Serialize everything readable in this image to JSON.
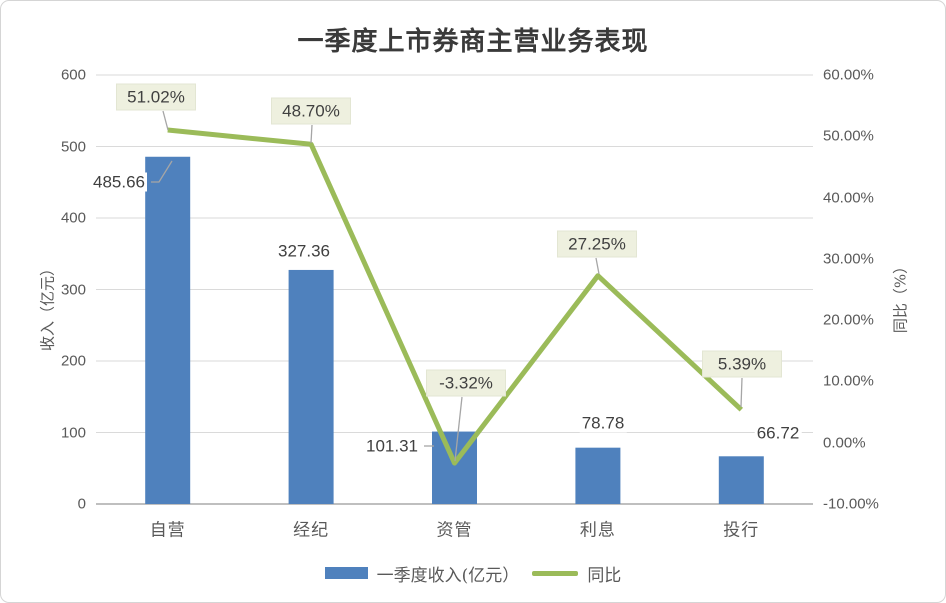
{
  "title": "一季度上市券商主营业务表现",
  "chart_data": {
    "type": "bar+line combo",
    "categories": [
      "自营",
      "经纪",
      "资管",
      "利息",
      "投行"
    ],
    "series": [
      {
        "name": "一季度收入(亿元）",
        "type": "bar",
        "axis": "left",
        "color": "#4F81BD",
        "values": [
          485.66,
          327.36,
          101.31,
          78.78,
          66.72
        ],
        "labels": [
          "485.66",
          "327.36",
          "101.31",
          "78.78",
          "66.72"
        ]
      },
      {
        "name": "同比",
        "type": "line",
        "axis": "right",
        "color": "#9BBB59",
        "values": [
          51.02,
          48.7,
          -3.32,
          27.25,
          5.39
        ],
        "labels": [
          "51.02%",
          "48.70%",
          "-3.32%",
          "27.25%",
          "5.39%"
        ]
      }
    ],
    "left_axis": {
      "title": "收入（亿元）",
      "min": 0,
      "max": 600,
      "step": 100,
      "ticks": [
        "600",
        "500",
        "400",
        "300",
        "200",
        "100",
        "0"
      ]
    },
    "right_axis": {
      "title": "同比（%）",
      "min": -10,
      "max": 60,
      "step": 10,
      "ticks": [
        "60.00%",
        "50.00%",
        "40.00%",
        "30.00%",
        "20.00%",
        "10.00%",
        "0.00%",
        "-10.00%"
      ]
    },
    "grid": "horizontal gridlines on, left-axis intervals",
    "legend_position": "bottom"
  },
  "legend": {
    "items": [
      {
        "label": "一季度收入(亿元）",
        "type": "bar",
        "color": "#4F81BD"
      },
      {
        "label": "同比",
        "type": "line",
        "color": "#9BBB59"
      }
    ]
  },
  "colors": {
    "bar": "#4F81BD",
    "line": "#9BBB59",
    "callout_fill": "#EEF0DF",
    "callout_border": "#E3E6D3",
    "leader": "#A6A6A6",
    "gridline": "#DADADA",
    "axis_line": "#BFBFBF",
    "tick_text": "#595959",
    "label_text": "#404040",
    "title_text": "#3A3A3A",
    "frame_border": "#D5D5D5"
  }
}
